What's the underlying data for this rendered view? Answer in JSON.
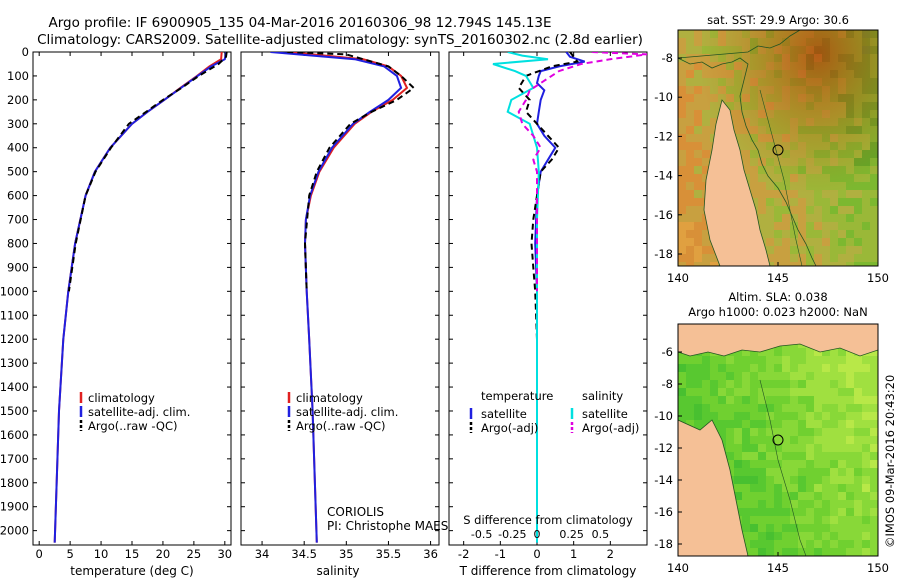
{
  "header": {
    "line1": "Argo profile: IF 6900905_135 04-Mar-2016 20160306_98 12.794S 145.13E",
    "line2": "Climatology: CARS2009. Satellite-adjusted climatology: synTS_20160302.nc (2.8d earlier)"
  },
  "depth_ticks": [
    0,
    100,
    200,
    300,
    400,
    500,
    600,
    700,
    800,
    900,
    1000,
    1100,
    1200,
    1300,
    1400,
    1500,
    1600,
    1700,
    1800,
    1900,
    2000
  ],
  "colors": {
    "climatology": "#e02020",
    "satellite": "#2020e0",
    "argo": "#000000",
    "sal_satellite": "#00e0e0",
    "sal_argo": "#e000e0",
    "land": "#f5c096"
  },
  "chart_data": [
    {
      "type": "line",
      "id": "temperature",
      "xlabel": "temperature (deg C)",
      "ylabel": "",
      "xlim": [
        -1,
        31
      ],
      "ylim": [
        2060,
        0
      ],
      "xticks": [
        0,
        5,
        10,
        15,
        20,
        25,
        30
      ],
      "xtick_labels": [
        "0",
        "5",
        "10",
        "15",
        "20",
        "25",
        "30"
      ],
      "series": [
        {
          "name": "climatology",
          "style": "solid",
          "color": "#e02020",
          "depth": [
            0,
            30,
            60,
            100,
            150,
            200,
            250,
            300,
            400,
            500,
            600,
            800,
            1000,
            1200,
            1500,
            2050
          ],
          "values": [
            29.5,
            29.4,
            27.5,
            25.5,
            22.8,
            20.2,
            17.5,
            15.0,
            11.5,
            9.0,
            7.5,
            5.8,
            4.7,
            3.9,
            3.2,
            2.5
          ]
        },
        {
          "name": "satellite-adj. clim.",
          "style": "solid",
          "color": "#2020e0",
          "depth": [
            0,
            30,
            60,
            100,
            150,
            200,
            250,
            300,
            400,
            500,
            600,
            800,
            1000,
            1200,
            1500,
            2050
          ],
          "values": [
            30.2,
            30.0,
            27.8,
            25.6,
            22.9,
            20.2,
            17.5,
            15.0,
            11.5,
            9.0,
            7.5,
            5.8,
            4.7,
            3.9,
            3.2,
            2.5
          ]
        },
        {
          "name": "Argo(..raw -QC)",
          "style": "dash",
          "color": "#000000",
          "depth": [
            0,
            20,
            50,
            100,
            150,
            200,
            250,
            300,
            400,
            500,
            600,
            800,
            1000
          ],
          "values": [
            30.3,
            30.2,
            29.0,
            25.8,
            23.0,
            20.0,
            17.3,
            14.5,
            11.6,
            9.1,
            7.5,
            5.9,
            4.8
          ]
        }
      ],
      "legend": [
        "climatology",
        "satellite-adj. clim.",
        "Argo(..raw -QC)"
      ]
    },
    {
      "type": "line",
      "id": "salinity",
      "xlabel": "salinity",
      "ylabel": "",
      "xlim": [
        33.75,
        36.1
      ],
      "ylim": [
        2060,
        0
      ],
      "xticks": [
        34,
        34.5,
        35,
        35.5,
        36
      ],
      "xtick_labels": [
        "34",
        "34.5",
        "35",
        "35.5",
        "36"
      ],
      "series": [
        {
          "name": "climatology",
          "style": "solid",
          "color": "#e02020",
          "depth": [
            0,
            30,
            60,
            100,
            150,
            200,
            250,
            300,
            400,
            500,
            600,
            700,
            800,
            1000,
            1200,
            1500,
            2050
          ],
          "values": [
            34.3,
            35.2,
            35.5,
            35.65,
            35.72,
            35.55,
            35.3,
            35.1,
            34.85,
            34.68,
            34.58,
            34.52,
            34.51,
            34.53,
            34.56,
            34.6,
            34.65
          ]
        },
        {
          "name": "satellite-adj. clim.",
          "style": "solid",
          "color": "#2020e0",
          "depth": [
            0,
            30,
            60,
            100,
            150,
            200,
            250,
            300,
            400,
            500,
            600,
            700,
            800,
            1000,
            1200,
            1500,
            2050
          ],
          "values": [
            34.1,
            35.1,
            35.45,
            35.6,
            35.65,
            35.5,
            35.28,
            35.08,
            34.83,
            34.67,
            34.57,
            34.52,
            34.51,
            34.53,
            34.56,
            34.6,
            34.65
          ]
        },
        {
          "name": "Argo(..raw -QC)",
          "style": "dash",
          "color": "#000000",
          "depth": [
            0,
            10,
            30,
            60,
            100,
            150,
            200,
            250,
            300,
            400,
            500,
            600,
            800,
            1000
          ],
          "values": [
            34.3,
            35.0,
            35.2,
            35.5,
            35.65,
            35.8,
            35.6,
            35.3,
            35.05,
            34.8,
            34.65,
            34.56,
            34.51,
            34.53
          ]
        }
      ],
      "legend": [
        "climatology",
        "satellite-adj. clim.",
        "Argo(..raw -QC)"
      ],
      "annotation": {
        "line1": "CORIOLIS",
        "line2": "PI: Christophe MAES"
      }
    },
    {
      "type": "line",
      "id": "differences",
      "xlabel": "T difference from climatology",
      "title_bottom": "S difference from climatology",
      "xlim": [
        -2.4,
        3.0
      ],
      "ylim": [
        2060,
        0
      ],
      "xticks": [
        -2,
        -1,
        0,
        1,
        2
      ],
      "xtick_labels": [
        "-2",
        "-1",
        "0",
        "1",
        "2"
      ],
      "sxticks": [
        -2,
        -1,
        0,
        1,
        2
      ],
      "sxtick_labels": [
        "-0.5",
        "-0.25",
        "0",
        "0.25",
        "0.5"
      ],
      "series": [
        {
          "name": "temperature satellite",
          "style": "solid",
          "color": "#2020e0",
          "depth": [
            0,
            20,
            40,
            60,
            80,
            100,
            130,
            160,
            200,
            250,
            300,
            350,
            400,
            450,
            500,
            600,
            800,
            1000,
            1500,
            2050
          ],
          "values": [
            0.8,
            0.9,
            1.3,
            0.6,
            0.1,
            0.05,
            0.0,
            0.2,
            0.1,
            0.05,
            0.0,
            0.2,
            0.5,
            0.3,
            0.1,
            0.0,
            -0.05,
            0.0,
            0.0,
            0.0
          ]
        },
        {
          "name": "temperature Argo(-adj)",
          "style": "dash",
          "color": "#000000",
          "depth": [
            0,
            20,
            40,
            60,
            100,
            150,
            200,
            250,
            300,
            350,
            400,
            450,
            500,
            600,
            700,
            800,
            900,
            1000,
            1200
          ],
          "values": [
            0.9,
            1.0,
            1.1,
            0.4,
            -0.3,
            -0.5,
            -0.2,
            -0.3,
            0.0,
            0.3,
            0.6,
            0.4,
            0.1,
            0.0,
            -0.1,
            -0.15,
            -0.1,
            -0.05,
            0.0
          ]
        },
        {
          "name": "salinity satellite",
          "style": "solid",
          "color": "#00e0e0",
          "depth": [
            0,
            15,
            30,
            50,
            80,
            100,
            150,
            200,
            250,
            300,
            400,
            500,
            700,
            1000,
            1500,
            2050
          ],
          "values": [
            -0.8,
            -0.4,
            0.3,
            -1.2,
            -0.6,
            -0.3,
            -0.1,
            -0.7,
            -0.8,
            -0.2,
            0.0,
            0.05,
            0.0,
            0.0,
            0.0,
            0.0
          ]
        },
        {
          "name": "salinity Argo(-adj)",
          "style": "dash",
          "color": "#e000e0",
          "depth": [
            0,
            10,
            30,
            50,
            80,
            120,
            160,
            200,
            250,
            300,
            350,
            400,
            450,
            500,
            700,
            1000
          ],
          "values": [
            1.5,
            3.0,
            2.0,
            1.2,
            0.6,
            0.2,
            -0.2,
            -0.3,
            -0.5,
            -0.4,
            -0.1,
            0.1,
            -0.1,
            0.0,
            0.0,
            0.0
          ]
        }
      ],
      "legend_headers": [
        "temperature",
        "salinity"
      ],
      "legend": [
        [
          "satellite",
          "Argo(-adj)"
        ],
        [
          "satellite",
          "Argo(-adj)"
        ]
      ]
    }
  ],
  "maps": {
    "sst": {
      "title": "sat. SST: 29.9 Argo: 30.6",
      "yticks": [
        "-8",
        "-10",
        "-12",
        "-14",
        "-16",
        "-18"
      ],
      "xticks": [
        "140",
        "145",
        "150"
      ]
    },
    "sla": {
      "title1": "Altim. SLA: 0.038",
      "title2": "Argo h1000: 0.023 h2000: NaN",
      "yticks": [
        "-6",
        "-8",
        "-10",
        "-12",
        "-14",
        "-16",
        "-18"
      ],
      "xticks": [
        "140",
        "145",
        "150"
      ]
    }
  },
  "footer": {
    "stamp": "©IMOS 09-Mar-2016 20:43:20"
  }
}
